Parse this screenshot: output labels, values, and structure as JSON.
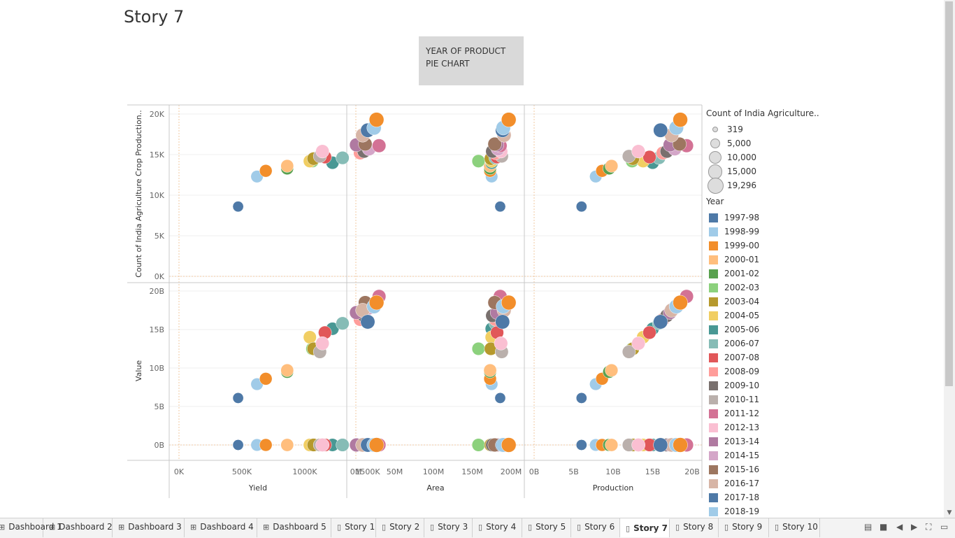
{
  "page": {
    "title": "Story 7"
  },
  "story_point": {
    "label": "YEAR OF PRODUCT PIE CHART"
  },
  "legend": {
    "size_title": "Count of India Agriculture..",
    "size_items": [
      {
        "label": "319",
        "value": 319
      },
      {
        "label": "5,000",
        "value": 5000
      },
      {
        "label": "10,000",
        "value": 10000
      },
      {
        "label": "15,000",
        "value": 15000
      },
      {
        "label": "19,296",
        "value": 19296
      }
    ],
    "color_title": "Year",
    "years": [
      {
        "label": "1997-98",
        "color": "#4e79a7"
      },
      {
        "label": "1998-99",
        "color": "#a0cbe8"
      },
      {
        "label": "1999-00",
        "color": "#f28e2b"
      },
      {
        "label": "2000-01",
        "color": "#ffbe7d"
      },
      {
        "label": "2001-02",
        "color": "#59a14f"
      },
      {
        "label": "2002-03",
        "color": "#8cd17d"
      },
      {
        "label": "2003-04",
        "color": "#b6992d"
      },
      {
        "label": "2004-05",
        "color": "#f1ce63"
      },
      {
        "label": "2005-06",
        "color": "#499894"
      },
      {
        "label": "2006-07",
        "color": "#86bcb6"
      },
      {
        "label": "2007-08",
        "color": "#e15759"
      },
      {
        "label": "2008-09",
        "color": "#ff9d9a"
      },
      {
        "label": "2009-10",
        "color": "#79706e"
      },
      {
        "label": "2010-11",
        "color": "#bab0ac"
      },
      {
        "label": "2011-12",
        "color": "#d37295"
      },
      {
        "label": "2012-13",
        "color": "#fabfd2"
      },
      {
        "label": "2013-14",
        "color": "#b07aa1"
      },
      {
        "label": "2014-15",
        "color": "#d4a6c8"
      },
      {
        "label": "2015-16",
        "color": "#9d7660"
      },
      {
        "label": "2016-17",
        "color": "#d7b5a6"
      },
      {
        "label": "2017-18",
        "color": "#4e79a7"
      },
      {
        "label": "2018-19",
        "color": "#a0cbe8"
      }
    ]
  },
  "chart_data": {
    "type": "scatter",
    "rows": [
      {
        "label": "Count of India Agriculture Crop Production..",
        "ticks": [
          "0K",
          "5K",
          "10K",
          "15K",
          "20K"
        ],
        "ylim": [
          0,
          20000
        ]
      },
      {
        "label": "Value",
        "ticks": [
          "0B",
          "5B",
          "10B",
          "15B",
          "20B"
        ],
        "ylim": [
          0,
          20000000000
        ]
      }
    ],
    "columns": [
      {
        "label": "Yield",
        "ticks": [
          "0K",
          "500K",
          "1000K",
          "1500K"
        ],
        "xlim": [
          0,
          1700000
        ]
      },
      {
        "label": "Area",
        "ticks": [
          "0M",
          "50M",
          "100M",
          "150M",
          "200M"
        ],
        "xlim": [
          0,
          210000000
        ]
      },
      {
        "label": "Production",
        "ticks": [
          "0B",
          "5B",
          "10B",
          "15B",
          "20B"
        ],
        "xlim": [
          0,
          20500000000
        ]
      }
    ],
    "series": [
      {
        "name": "1997-98",
        "yield": 470000,
        "area": 186000000,
        "production": 6000000000,
        "count": 8600,
        "value": 6100000000
      },
      {
        "name": "1998-99",
        "yield": 620000,
        "area": 175000000,
        "production": 7800000000,
        "count": 12300,
        "value": 7900000000
      },
      {
        "name": "1999-00",
        "yield": 690000,
        "area": 173000000,
        "production": 8600000000,
        "count": 13000,
        "value": 8600000000
      },
      {
        "name": "2000-01",
        "yield": 860000,
        "area": 173000000,
        "production": 9800000000,
        "count": 13600,
        "value": 9700000000
      },
      {
        "name": "2001-02",
        "yield": 860000,
        "area": 173000000,
        "production": 9500000000,
        "count": 13300,
        "value": 9500000000
      },
      {
        "name": "2002-03",
        "yield": 1060000,
        "area": 158000000,
        "production": 12400000000,
        "count": 14200,
        "value": 12500000000
      },
      {
        "name": "2003-04",
        "yield": 1070000,
        "area": 174000000,
        "production": 12500000000,
        "count": 14500,
        "value": 12500000000
      },
      {
        "name": "2004-05",
        "yield": 1040000,
        "area": 175000000,
        "production": 13800000000,
        "count": 14200,
        "value": 14000000000
      },
      {
        "name": "2005-06",
        "yield": 1220000,
        "area": 175000000,
        "production": 15000000000,
        "count": 14000,
        "value": 15100000000
      },
      {
        "name": "2006-07",
        "yield": 1300000,
        "area": 180000000,
        "production": 15800000000,
        "count": 14600,
        "value": 15800000000
      },
      {
        "name": "2007-08",
        "yield": 1160000,
        "area": 182000000,
        "production": 14600000000,
        "count": 14700,
        "value": 14600000000
      },
      {
        "name": "2008-09",
        "yield": 1440000,
        "area": 180000000,
        "production": 16300000000,
        "count": 15200,
        "value": 16300000000
      },
      {
        "name": "2009-10",
        "yield": 1470000,
        "area": 176000000,
        "production": 16800000000,
        "count": 15400,
        "value": 16800000000
      },
      {
        "name": "2010-11",
        "yield": 1120000,
        "area": 188000000,
        "production": 12000000000,
        "count": 14800,
        "value": 12100000000
      },
      {
        "name": "2011-12",
        "yield": 1590000,
        "area": 186000000,
        "production": 19300000000,
        "count": 16100,
        "value": 19300000000
      },
      {
        "name": "2012-13",
        "yield": 1140000,
        "area": 187000000,
        "production": 13200000000,
        "count": 15400,
        "value": 13200000000
      },
      {
        "name": "2013-14",
        "yield": 1410000,
        "area": 182000000,
        "production": 17200000000,
        "count": 16200,
        "value": 17200000000
      },
      {
        "name": "2014-15",
        "yield": 1510000,
        "area": 183000000,
        "production": 17800000000,
        "count": 15700,
        "value": 17800000000
      },
      {
        "name": "2015-16",
        "yield": 1480000,
        "area": 179000000,
        "production": 18400000000,
        "count": 16300,
        "value": 18500000000
      },
      {
        "name": "2016-17",
        "yield": 1460000,
        "area": 191000000,
        "production": 17400000000,
        "count": 17400,
        "value": 17500000000
      },
      {
        "name": "2017-18",
        "yield": 1500000,
        "area": 189000000,
        "production": 16000000000,
        "count": 18000,
        "value": 16000000000
      },
      {
        "name": "2018-19",
        "yield": 1550000,
        "area": 190000000,
        "production": 18000000000,
        "count": 18300,
        "value": 18000000000
      },
      {
        "name": "1999-00 b",
        "yield": 1570000,
        "area": 197000000,
        "production": 18500000000,
        "count": 19300,
        "value": 18500000000
      }
    ],
    "grid": true,
    "legend": "right"
  },
  "tabs": [
    {
      "label": "Dashboard 1",
      "kind": "dashboard"
    },
    {
      "label": "Dashboard 2",
      "kind": "dashboard"
    },
    {
      "label": "Dashboard 3",
      "kind": "dashboard"
    },
    {
      "label": "Dashboard 4",
      "kind": "dashboard"
    },
    {
      "label": "Dashboard 5",
      "kind": "dashboard"
    },
    {
      "label": "Story 1",
      "kind": "story"
    },
    {
      "label": "Story 2",
      "kind": "story"
    },
    {
      "label": "Story 3",
      "kind": "story"
    },
    {
      "label": "Story 4",
      "kind": "story"
    },
    {
      "label": "Story 5",
      "kind": "story"
    },
    {
      "label": "Story 6",
      "kind": "story"
    },
    {
      "label": "Story 7",
      "kind": "story",
      "active": true
    },
    {
      "label": "Story 8",
      "kind": "story"
    },
    {
      "label": "Story 9",
      "kind": "story"
    },
    {
      "label": "Story 10",
      "kind": "story"
    }
  ]
}
